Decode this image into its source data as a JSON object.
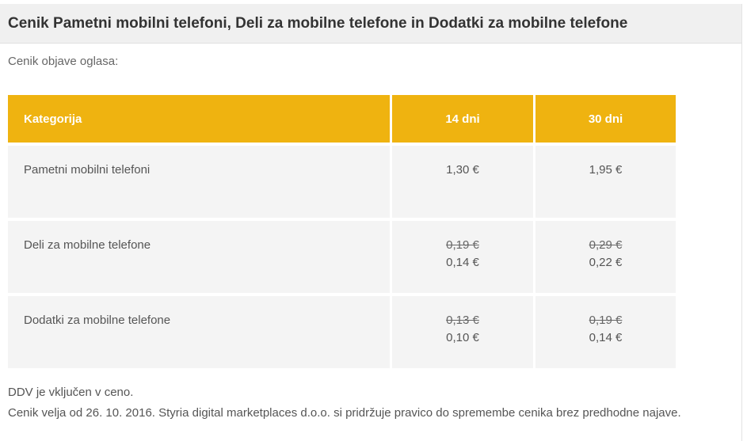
{
  "title_bar": {
    "title": "Cenik Pametni mobilni telefoni, Deli za mobilne telefone in Dodatki za mobilne telefone"
  },
  "intro_text": "Cenik objave oglasa:",
  "table": {
    "headers": [
      "Kategorija",
      "14 dni",
      "30 dni"
    ],
    "rows": [
      {
        "category": "Pametni mobilni telefoni",
        "price_14": "1,30 €",
        "price_30": "1,95 €"
      },
      {
        "category": "Deli za mobilne telefone",
        "price_14_old": "0,19 €",
        "price_14": "0,14 €",
        "price_30_old": "0,29 €",
        "price_30": "0,22 €"
      },
      {
        "category": "Dodatki za mobilne telefone",
        "price_14_old": "0,13 €",
        "price_14": "0,10 €",
        "price_30_old": "0,19 €",
        "price_30": "0,14 €"
      }
    ]
  },
  "footer": {
    "vat_note": "DDV je vključen v ceno.",
    "validity_note": "Cenik velja od 26. 10. 2016. Styria digital marketplaces d.o.o. si pridržuje pravico do spremembe cenika brez predhodne najave."
  },
  "colors": {
    "table_header_bg": "#efb310",
    "table_row_bg": "#f4f4f4",
    "title_bar_bg": "#f0f0f0",
    "title_text": "#333333",
    "body_text": "#555555"
  },
  "chart_data": {
    "type": "table",
    "title": "Cenik objave oglasa",
    "columns": [
      "Kategorija",
      "14 dni",
      "30 dni"
    ],
    "rows": [
      [
        "Pametni mobilni telefoni",
        "1,30 €",
        "1,95 €"
      ],
      [
        "Deli za mobilne telefone",
        "0,19 € → 0,14 €",
        "0,29 € → 0,22 €"
      ],
      [
        "Dodatki za mobilne telefone",
        "0,13 € → 0,10 €",
        "0,19 € → 0,14 €"
      ]
    ]
  }
}
